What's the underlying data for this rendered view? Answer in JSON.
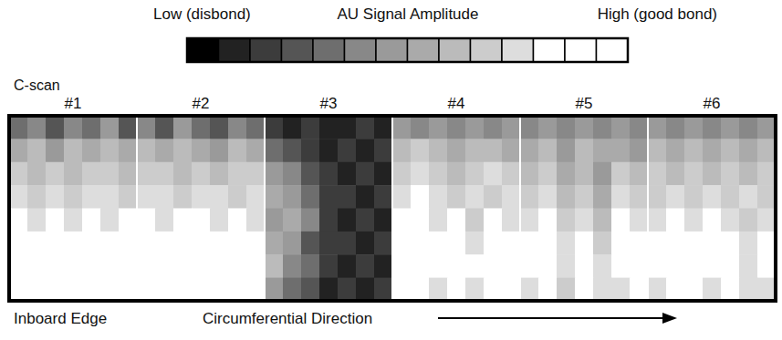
{
  "chart_data": {
    "type": "heatmap",
    "colorbar": {
      "title": "AU Signal Amplitude",
      "low_label": "Low (disbond)",
      "high_label": "High (good bond)",
      "colors": [
        "#000000",
        "#222222",
        "#3c3c3c",
        "#555555",
        "#6e6e6e",
        "#888888",
        "#9a9a9a",
        "#aaaaaa",
        "#bbbbbb",
        "#cccccc",
        "#dddddd",
        "#ffffff",
        "#ffffff",
        "#ffffff"
      ]
    },
    "label": "C-scan",
    "edge_label": "Inboard Edge",
    "x_label": "Circumferential Direction",
    "panels": [
      {
        "name": "#1",
        "cells": [
          [
            4,
            5,
            3,
            5,
            4,
            6,
            3
          ],
          [
            7,
            8,
            6,
            8,
            7,
            8,
            7
          ],
          [
            9,
            8,
            9,
            8,
            9,
            9,
            8
          ],
          [
            10,
            9,
            10,
            9,
            10,
            10,
            9
          ],
          [
            11,
            10,
            11,
            10,
            11,
            10,
            11
          ],
          [
            12,
            11,
            12,
            11,
            12,
            12,
            11
          ],
          [
            13,
            12,
            13,
            12,
            13,
            12,
            13
          ],
          [
            12,
            13,
            12,
            13,
            11,
            13,
            12
          ]
        ]
      },
      {
        "name": "#2",
        "cells": [
          [
            5,
            3,
            6,
            4,
            3,
            5,
            4
          ],
          [
            8,
            7,
            8,
            7,
            6,
            8,
            7
          ],
          [
            9,
            9,
            8,
            9,
            8,
            9,
            9
          ],
          [
            10,
            10,
            9,
            10,
            10,
            9,
            10
          ],
          [
            11,
            10,
            11,
            11,
            10,
            11,
            10
          ],
          [
            12,
            12,
            11,
            12,
            12,
            11,
            12
          ],
          [
            13,
            12,
            13,
            13,
            12,
            13,
            12
          ],
          [
            12,
            11,
            12,
            12,
            11,
            12,
            11
          ]
        ]
      },
      {
        "name": "#3",
        "cells": [
          [
            2,
            1,
            2,
            1,
            1,
            2,
            1
          ],
          [
            4,
            3,
            2,
            1,
            2,
            1,
            2
          ],
          [
            6,
            5,
            3,
            2,
            1,
            2,
            1
          ],
          [
            7,
            6,
            4,
            2,
            2,
            1,
            2
          ],
          [
            6,
            7,
            5,
            2,
            1,
            2,
            1
          ],
          [
            7,
            6,
            3,
            2,
            2,
            1,
            2
          ],
          [
            8,
            5,
            4,
            2,
            1,
            2,
            1
          ],
          [
            6,
            4,
            3,
            1,
            2,
            1,
            2
          ]
        ]
      },
      {
        "name": "#4",
        "cells": [
          [
            6,
            5,
            6,
            5,
            6,
            5,
            6
          ],
          [
            8,
            9,
            8,
            7,
            8,
            8,
            7
          ],
          [
            9,
            10,
            9,
            8,
            9,
            10,
            9
          ],
          [
            10,
            11,
            10,
            9,
            10,
            9,
            10
          ],
          [
            11,
            12,
            10,
            11,
            9,
            11,
            10
          ],
          [
            12,
            13,
            11,
            12,
            10,
            12,
            11
          ],
          [
            12,
            12,
            11,
            12,
            11,
            11,
            12
          ],
          [
            11,
            12,
            10,
            11,
            10,
            12,
            11
          ]
        ]
      },
      {
        "name": "#5",
        "cells": [
          [
            5,
            6,
            5,
            6,
            5,
            6,
            5
          ],
          [
            7,
            8,
            6,
            8,
            7,
            7,
            6
          ],
          [
            8,
            9,
            7,
            8,
            6,
            9,
            8
          ],
          [
            9,
            10,
            8,
            9,
            7,
            10,
            9
          ],
          [
            10,
            11,
            9,
            10,
            8,
            11,
            10
          ],
          [
            11,
            12,
            10,
            11,
            9,
            12,
            11
          ],
          [
            11,
            11,
            10,
            12,
            10,
            11,
            11
          ],
          [
            10,
            11,
            9,
            11,
            10,
            10,
            11
          ]
        ]
      },
      {
        "name": "#6",
        "cells": [
          [
            6,
            5,
            6,
            5,
            6,
            5,
            6
          ],
          [
            8,
            7,
            8,
            7,
            8,
            7,
            8
          ],
          [
            9,
            8,
            9,
            8,
            9,
            8,
            9
          ],
          [
            9,
            10,
            9,
            10,
            9,
            10,
            9
          ],
          [
            10,
            11,
            10,
            11,
            10,
            9,
            10
          ],
          [
            11,
            12,
            11,
            12,
            11,
            10,
            11
          ],
          [
            11,
            11,
            12,
            11,
            12,
            10,
            11
          ],
          [
            10,
            11,
            11,
            10,
            11,
            10,
            10
          ]
        ]
      }
    ]
  }
}
